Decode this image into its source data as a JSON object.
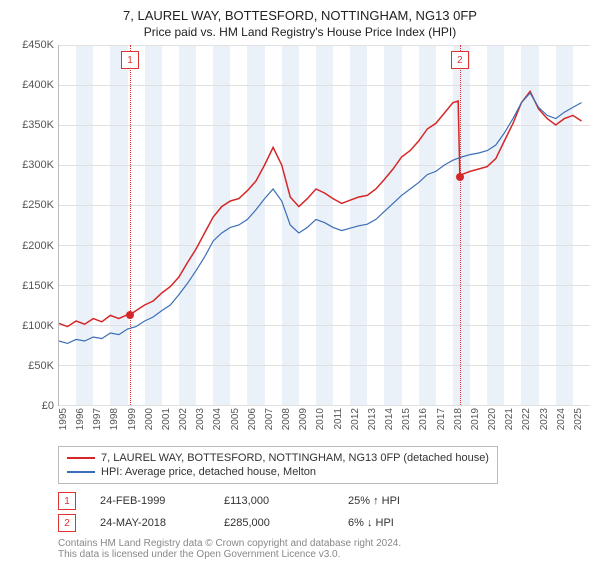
{
  "chart": {
    "title": "7, LAUREL WAY, BOTTESFORD, NOTTINGHAM, NG13 0FP",
    "subtitle": "Price paid vs. HM Land Registry's House Price Index (HPI)",
    "type": "line",
    "x": {
      "min": 1995,
      "max": 2026,
      "ticks": [
        1995,
        1996,
        1997,
        1998,
        1999,
        2000,
        2001,
        2002,
        2003,
        2004,
        2005,
        2006,
        2007,
        2008,
        2009,
        2010,
        2011,
        2012,
        2013,
        2014,
        2015,
        2016,
        2017,
        2018,
        2019,
        2020,
        2021,
        2022,
        2023,
        2024,
        2025
      ],
      "shaded_bands_start": 1996
    },
    "y": {
      "min": 0,
      "max": 450000,
      "tick_step": 50000,
      "tick_prefix": "£",
      "tick_suffix": "K",
      "tick_divisor": 1000
    },
    "grid_color": "#e0e0e0",
    "background_color": "#ffffff",
    "series": [
      {
        "key": "price_paid",
        "label": "7, LAUREL WAY, BOTTESFORD, NOTTINGHAM, NG13 0FP (detached house)",
        "color": "#d62728",
        "line_width": 1.5,
        "points": [
          [
            1995.0,
            102000
          ],
          [
            1995.5,
            98000
          ],
          [
            1996.0,
            105000
          ],
          [
            1996.5,
            101000
          ],
          [
            1997.0,
            108000
          ],
          [
            1997.5,
            104000
          ],
          [
            1998.0,
            112000
          ],
          [
            1998.5,
            108000
          ],
          [
            1999.0,
            113000
          ],
          [
            1999.15,
            113000
          ],
          [
            1999.5,
            118000
          ],
          [
            2000.0,
            125000
          ],
          [
            2000.5,
            130000
          ],
          [
            2001.0,
            140000
          ],
          [
            2001.5,
            148000
          ],
          [
            2002.0,
            160000
          ],
          [
            2002.5,
            178000
          ],
          [
            2003.0,
            195000
          ],
          [
            2003.5,
            215000
          ],
          [
            2004.0,
            235000
          ],
          [
            2004.5,
            248000
          ],
          [
            2005.0,
            255000
          ],
          [
            2005.5,
            258000
          ],
          [
            2006.0,
            268000
          ],
          [
            2006.5,
            280000
          ],
          [
            2007.0,
            300000
          ],
          [
            2007.5,
            322000
          ],
          [
            2008.0,
            300000
          ],
          [
            2008.5,
            260000
          ],
          [
            2009.0,
            248000
          ],
          [
            2009.5,
            258000
          ],
          [
            2010.0,
            270000
          ],
          [
            2010.5,
            265000
          ],
          [
            2011.0,
            258000
          ],
          [
            2011.5,
            252000
          ],
          [
            2012.0,
            256000
          ],
          [
            2012.5,
            260000
          ],
          [
            2013.0,
            262000
          ],
          [
            2013.5,
            270000
          ],
          [
            2014.0,
            282000
          ],
          [
            2014.5,
            295000
          ],
          [
            2015.0,
            310000
          ],
          [
            2015.5,
            318000
          ],
          [
            2016.0,
            330000
          ],
          [
            2016.5,
            345000
          ],
          [
            2017.0,
            352000
          ],
          [
            2017.5,
            365000
          ],
          [
            2018.0,
            378000
          ],
          [
            2018.3,
            380000
          ],
          [
            2018.4,
            285000
          ],
          [
            2018.5,
            288000
          ],
          [
            2019.0,
            292000
          ],
          [
            2019.5,
            295000
          ],
          [
            2020.0,
            298000
          ],
          [
            2020.5,
            308000
          ],
          [
            2021.0,
            330000
          ],
          [
            2021.5,
            352000
          ],
          [
            2022.0,
            378000
          ],
          [
            2022.5,
            392000
          ],
          [
            2023.0,
            370000
          ],
          [
            2023.5,
            358000
          ],
          [
            2024.0,
            350000
          ],
          [
            2024.5,
            358000
          ],
          [
            2025.0,
            362000
          ],
          [
            2025.5,
            355000
          ]
        ]
      },
      {
        "key": "hpi",
        "label": "HPI: Average price, detached house, Melton",
        "color": "#3b6fb6",
        "line_width": 1.2,
        "points": [
          [
            1995.0,
            80000
          ],
          [
            1995.5,
            77000
          ],
          [
            1996.0,
            82000
          ],
          [
            1996.5,
            80000
          ],
          [
            1997.0,
            85000
          ],
          [
            1997.5,
            83000
          ],
          [
            1998.0,
            90000
          ],
          [
            1998.5,
            88000
          ],
          [
            1999.0,
            95000
          ],
          [
            1999.5,
            98000
          ],
          [
            2000.0,
            105000
          ],
          [
            2000.5,
            110000
          ],
          [
            2001.0,
            118000
          ],
          [
            2001.5,
            125000
          ],
          [
            2002.0,
            138000
          ],
          [
            2002.5,
            152000
          ],
          [
            2003.0,
            168000
          ],
          [
            2003.5,
            185000
          ],
          [
            2004.0,
            205000
          ],
          [
            2004.5,
            215000
          ],
          [
            2005.0,
            222000
          ],
          [
            2005.5,
            225000
          ],
          [
            2006.0,
            232000
          ],
          [
            2006.5,
            244000
          ],
          [
            2007.0,
            258000
          ],
          [
            2007.5,
            270000
          ],
          [
            2008.0,
            255000
          ],
          [
            2008.5,
            225000
          ],
          [
            2009.0,
            215000
          ],
          [
            2009.5,
            222000
          ],
          [
            2010.0,
            232000
          ],
          [
            2010.5,
            228000
          ],
          [
            2011.0,
            222000
          ],
          [
            2011.5,
            218000
          ],
          [
            2012.0,
            221000
          ],
          [
            2012.5,
            224000
          ],
          [
            2013.0,
            226000
          ],
          [
            2013.5,
            232000
          ],
          [
            2014.0,
            242000
          ],
          [
            2014.5,
            252000
          ],
          [
            2015.0,
            262000
          ],
          [
            2015.5,
            270000
          ],
          [
            2016.0,
            278000
          ],
          [
            2016.5,
            288000
          ],
          [
            2017.0,
            292000
          ],
          [
            2017.5,
            300000
          ],
          [
            2018.0,
            306000
          ],
          [
            2018.5,
            310000
          ],
          [
            2019.0,
            313000
          ],
          [
            2019.5,
            315000
          ],
          [
            2020.0,
            318000
          ],
          [
            2020.5,
            325000
          ],
          [
            2021.0,
            340000
          ],
          [
            2021.5,
            358000
          ],
          [
            2022.0,
            378000
          ],
          [
            2022.5,
            390000
          ],
          [
            2023.0,
            372000
          ],
          [
            2023.5,
            362000
          ],
          [
            2024.0,
            358000
          ],
          [
            2024.5,
            366000
          ],
          [
            2025.0,
            372000
          ],
          [
            2025.5,
            378000
          ]
        ]
      }
    ],
    "event_lines": [
      {
        "n": "1",
        "x": 1999.15,
        "y": 113000,
        "dot_color": "#d62728"
      },
      {
        "n": "2",
        "x": 2018.4,
        "y": 285000,
        "dot_color": "#d62728"
      }
    ],
    "legend": {
      "border_color": "#bbbbbb"
    },
    "events": [
      {
        "n": "1",
        "date": "24-FEB-1999",
        "price": "£113,000",
        "delta": "25% ↑ HPI"
      },
      {
        "n": "2",
        "date": "24-MAY-2018",
        "price": "£285,000",
        "delta": "6% ↓ HPI"
      }
    ],
    "footnote_1": "Contains HM Land Registry data © Crown copyright and database right 2024.",
    "footnote_2": "This data is licensed under the Open Government Licence v3.0."
  }
}
